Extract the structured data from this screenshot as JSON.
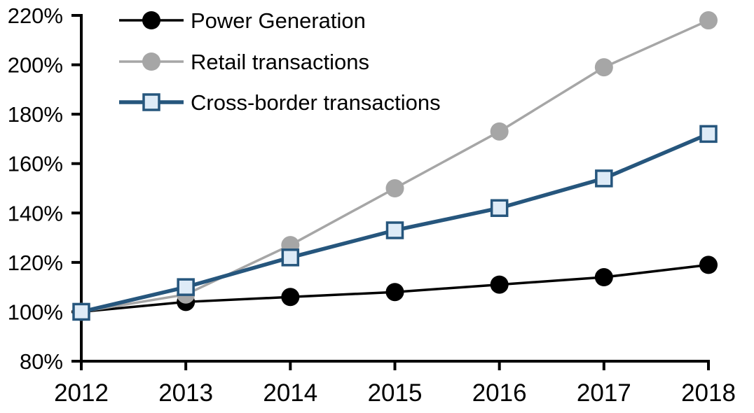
{
  "chart_data": {
    "type": "line",
    "title": "",
    "x": [
      "2012",
      "2013",
      "2014",
      "2015",
      "2016",
      "2017",
      "2018"
    ],
    "y_tick_labels": [
      "80%",
      "100%",
      "120%",
      "140%",
      "160%",
      "180%",
      "200%",
      "220%"
    ],
    "ylim": [
      80,
      220
    ],
    "y_tick_step": 20,
    "grid": false,
    "legend_position": "top-left-inside",
    "axis_color": "#000000",
    "background_color": "#ffffff",
    "series": [
      {
        "name": "Power Generation",
        "color": "#000000",
        "marker": "circle",
        "marker_fill": "#000000",
        "line_width": 3.5,
        "values": [
          100,
          104,
          106,
          108,
          111,
          114,
          119
        ]
      },
      {
        "name": "Retail transactions",
        "color": "#A6A6A6",
        "marker": "circle",
        "marker_fill": "#A6A6A6",
        "line_width": 3.5,
        "values": [
          100,
          107,
          127,
          150,
          173,
          199,
          218
        ]
      },
      {
        "name": "Cross-border transactions",
        "color": "#26567D",
        "marker": "square",
        "marker_fill": "#DEEBF7",
        "line_width": 5.5,
        "values": [
          100,
          110,
          122,
          133,
          142,
          154,
          172
        ]
      }
    ]
  }
}
